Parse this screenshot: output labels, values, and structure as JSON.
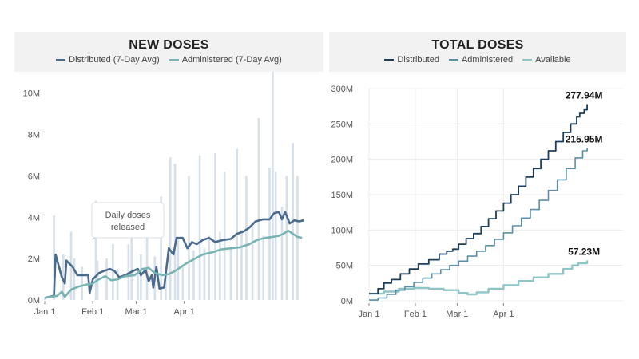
{
  "chart_data": [
    {
      "type": "line",
      "title": "NEW DOSES",
      "legend": [
        {
          "name": "Distributed (7-Day Avg)",
          "color": "#4a6a8e"
        },
        {
          "name": "Administered (7-Day Avg)",
          "color": "#78b4b2"
        }
      ],
      "bar_series": {
        "name": "Daily doses released",
        "color": "#d6e0ea",
        "values": [
          [
            0,
            0.1
          ],
          [
            6,
            4.1
          ],
          [
            12,
            2.2
          ],
          [
            17,
            3.3
          ],
          [
            19,
            2.0
          ],
          [
            24,
            1.6
          ],
          [
            33,
            4.8
          ],
          [
            34,
            1.9
          ],
          [
            40,
            2.0
          ],
          [
            44,
            2.7
          ],
          [
            47,
            1.5
          ],
          [
            54,
            2.7
          ],
          [
            56,
            3.1
          ],
          [
            60,
            1.3
          ],
          [
            62,
            2.2
          ],
          [
            66,
            3.4
          ],
          [
            71,
            2.1
          ],
          [
            75,
            5.0
          ],
          [
            78,
            1.4
          ],
          [
            81,
            6.9
          ],
          [
            84,
            6.6
          ],
          [
            86,
            3.0
          ],
          [
            89,
            1.6
          ],
          [
            93,
            6.0
          ],
          [
            96,
            2.4
          ],
          [
            100,
            7.0
          ],
          [
            103,
            2.5
          ],
          [
            106,
            3.1
          ],
          [
            110,
            7.1
          ],
          [
            113,
            3.3
          ],
          [
            116,
            6.2
          ],
          [
            120,
            2.5
          ],
          [
            124,
            7.3
          ],
          [
            127,
            3.4
          ],
          [
            130,
            6.0
          ],
          [
            134,
            3.6
          ],
          [
            138,
            8.8
          ],
          [
            141,
            3.1
          ],
          [
            145,
            6.4
          ],
          [
            147,
            11.3
          ],
          [
            149,
            6.2
          ],
          [
            153,
            4.5
          ],
          [
            156,
            6.0
          ],
          [
            160,
            7.6
          ],
          [
            163,
            6.0
          ]
        ]
      },
      "series": [
        {
          "name": "Distributed (7-Day Avg)",
          "color": "#4a6a8e",
          "points": [
            [
              0,
              0.1
            ],
            [
              6,
              0.2
            ],
            [
              7,
              2.2
            ],
            [
              11,
              1.1
            ],
            [
              13,
              0.8
            ],
            [
              14,
              1.9
            ],
            [
              18,
              1.6
            ],
            [
              21,
              1.2
            ],
            [
              25,
              1.2
            ],
            [
              28,
              1.2
            ],
            [
              29,
              0.35
            ],
            [
              31,
              1.0
            ],
            [
              35,
              1.3
            ],
            [
              38,
              1.4
            ],
            [
              42,
              1.5
            ],
            [
              45,
              1.4
            ],
            [
              48,
              1.1
            ],
            [
              52,
              1.2
            ],
            [
              57,
              1.4
            ],
            [
              60,
              1.5
            ],
            [
              62,
              1.2
            ],
            [
              65,
              1.45
            ],
            [
              67,
              0.9
            ],
            [
              69,
              1.2
            ],
            [
              70,
              0.6
            ],
            [
              72,
              1.6
            ],
            [
              74,
              0.55
            ],
            [
              77,
              0.6
            ],
            [
              80,
              2.5
            ],
            [
              83,
              2.2
            ],
            [
              85,
              3.0
            ],
            [
              89,
              3.0
            ],
            [
              92,
              2.5
            ],
            [
              95,
              2.8
            ],
            [
              98,
              2.7
            ],
            [
              102,
              2.9
            ],
            [
              106,
              3.0
            ],
            [
              110,
              2.8
            ],
            [
              115,
              2.9
            ],
            [
              120,
              2.95
            ],
            [
              124,
              3.2
            ],
            [
              128,
              3.3
            ],
            [
              132,
              3.5
            ],
            [
              136,
              3.8
            ],
            [
              141,
              3.9
            ],
            [
              145,
              3.9
            ],
            [
              148,
              4.2
            ],
            [
              151,
              4.25
            ],
            [
              153,
              3.9
            ],
            [
              155,
              4.25
            ],
            [
              158,
              3.7
            ],
            [
              161,
              3.85
            ],
            [
              164,
              3.8
            ],
            [
              167,
              3.85
            ]
          ]
        },
        {
          "name": "Administered (7-Day Avg)",
          "color": "#78b4b2",
          "points": [
            [
              0,
              0.1
            ],
            [
              8,
              0.2
            ],
            [
              11,
              0.4
            ],
            [
              13,
              0.15
            ],
            [
              17,
              0.5
            ],
            [
              22,
              0.65
            ],
            [
              27,
              0.75
            ],
            [
              31,
              0.8
            ],
            [
              35,
              1.0
            ],
            [
              39,
              1.15
            ],
            [
              43,
              0.95
            ],
            [
              47,
              1.0
            ],
            [
              52,
              1.15
            ],
            [
              58,
              1.2
            ],
            [
              63,
              1.5
            ],
            [
              67,
              1.55
            ],
            [
              71,
              1.3
            ],
            [
              76,
              1.2
            ],
            [
              80,
              1.25
            ],
            [
              84,
              1.4
            ],
            [
              88,
              1.6
            ],
            [
              92,
              1.8
            ],
            [
              97,
              2.0
            ],
            [
              102,
              2.2
            ],
            [
              108,
              2.3
            ],
            [
              114,
              2.45
            ],
            [
              120,
              2.5
            ],
            [
              126,
              2.55
            ],
            [
              132,
              2.7
            ],
            [
              137,
              2.9
            ],
            [
              142,
              3.0
            ],
            [
              147,
              3.05
            ],
            [
              151,
              3.1
            ],
            [
              154,
              3.2
            ],
            [
              157,
              3.35
            ],
            [
              160,
              3.2
            ],
            [
              163,
              3.05
            ],
            [
              166,
              3.0
            ]
          ]
        }
      ],
      "y_ticks": [
        "0M",
        "2M",
        "4M",
        "6M",
        "8M",
        "10M"
      ],
      "x_ticks": [
        "Jan 1",
        "Feb 1",
        "Mar 1",
        "Apr 1"
      ],
      "ylim": [
        0,
        10.8
      ],
      "grid": false,
      "annotation": [
        "Daily doses",
        "released"
      ]
    },
    {
      "type": "line",
      "title": "TOTAL DOSES",
      "legend": [
        {
          "name": "Distributed",
          "color": "#1d3f5b"
        },
        {
          "name": "Administered",
          "color": "#5b8fa8"
        },
        {
          "name": "Available",
          "color": "#8ec6c8"
        }
      ],
      "series": [
        {
          "name": "Distributed",
          "color": "#1d3f5b",
          "end_label": "277.94M",
          "points": [
            [
              0,
              10
            ],
            [
              6,
              17
            ],
            [
              10,
              25
            ],
            [
              15,
              30
            ],
            [
              21,
              38
            ],
            [
              27,
              45
            ],
            [
              33,
              52
            ],
            [
              40,
              58
            ],
            [
              47,
              66
            ],
            [
              52,
              70
            ],
            [
              56,
              73
            ],
            [
              60,
              80
            ],
            [
              65,
              88
            ],
            [
              70,
              95
            ],
            [
              75,
              105
            ],
            [
              80,
              116
            ],
            [
              85,
              127
            ],
            [
              90,
              138
            ],
            [
              95,
              150
            ],
            [
              100,
              162
            ],
            [
              105,
              175
            ],
            [
              110,
              187
            ],
            [
              115,
              200
            ],
            [
              120,
              212
            ],
            [
              125,
              225
            ],
            [
              130,
              238
            ],
            [
              135,
              250
            ],
            [
              139,
              260
            ],
            [
              141,
              265
            ],
            [
              144,
              270
            ],
            [
              146,
              278
            ]
          ]
        },
        {
          "name": "Administered",
          "color": "#5b8fa8",
          "end_label": "215.95M",
          "points": [
            [
              0,
              1
            ],
            [
              6,
              4
            ],
            [
              12,
              9
            ],
            [
              18,
              15
            ],
            [
              24,
              20
            ],
            [
              30,
              26
            ],
            [
              36,
              32
            ],
            [
              42,
              38
            ],
            [
              48,
              44
            ],
            [
              54,
              50
            ],
            [
              60,
              56
            ],
            [
              66,
              63
            ],
            [
              72,
              70
            ],
            [
              78,
              78
            ],
            [
              84,
              87
            ],
            [
              90,
              96
            ],
            [
              96,
              106
            ],
            [
              102,
              117
            ],
            [
              108,
              129
            ],
            [
              114,
              142
            ],
            [
              120,
              156
            ],
            [
              126,
              171
            ],
            [
              132,
              187
            ],
            [
              138,
              202
            ],
            [
              143,
              212
            ],
            [
              146,
              216
            ]
          ]
        },
        {
          "name": "Available",
          "color": "#8ec6c8",
          "end_label": "57.23M",
          "points": [
            [
              0,
              10
            ],
            [
              10,
              13
            ],
            [
              20,
              17
            ],
            [
              30,
              18
            ],
            [
              40,
              17
            ],
            [
              50,
              15
            ],
            [
              60,
              11
            ],
            [
              66,
              9
            ],
            [
              72,
              12
            ],
            [
              80,
              17
            ],
            [
              90,
              22
            ],
            [
              100,
              28
            ],
            [
              110,
              33
            ],
            [
              120,
              38
            ],
            [
              130,
              45
            ],
            [
              136,
              50
            ],
            [
              140,
              53
            ],
            [
              146,
              57
            ]
          ]
        }
      ],
      "y_ticks": [
        "0M",
        "50M",
        "100M",
        "150M",
        "200M",
        "250M",
        "300M"
      ],
      "x_ticks": [
        "Jan 1",
        "Feb 1",
        "Mar 1",
        "Apr 1"
      ],
      "ylim": [
        0,
        300
      ],
      "grid": true
    }
  ]
}
